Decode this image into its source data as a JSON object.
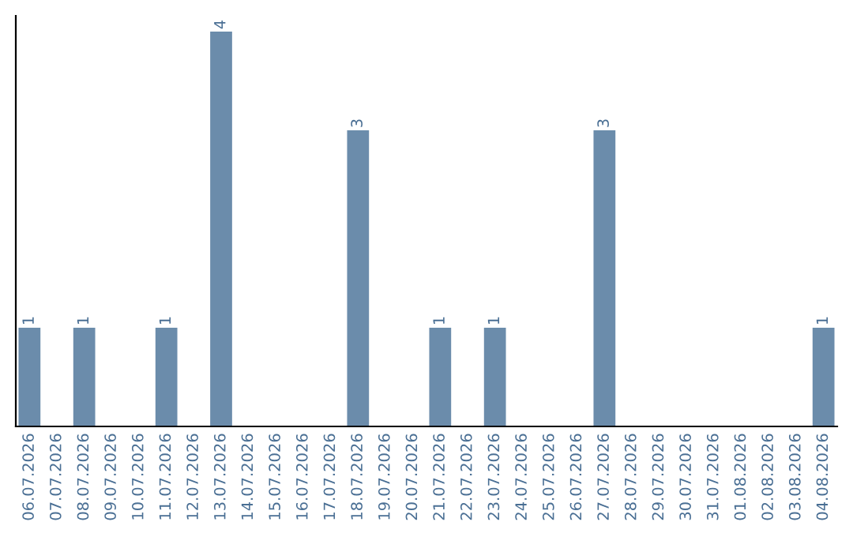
{
  "chart_data": {
    "type": "bar",
    "categories": [
      "06.07.2026",
      "07.07.2026",
      "08.07.2026",
      "09.07.2026",
      "10.07.2026",
      "11.07.2026",
      "12.07.2026",
      "13.07.2026",
      "14.07.2026",
      "15.07.2026",
      "16.07.2026",
      "17.07.2026",
      "18.07.2026",
      "19.07.2026",
      "20.07.2026",
      "21.07.2026",
      "22.07.2026",
      "23.07.2026",
      "24.07.2026",
      "25.07.2026",
      "26.07.2026",
      "27.07.2026",
      "28.07.2026",
      "29.07.2026",
      "30.07.2026",
      "31.07.2026",
      "01.08.2026",
      "02.08.2026",
      "03.08.2026",
      "04.08.2026"
    ],
    "values": [
      1,
      0,
      1,
      0,
      0,
      1,
      0,
      4,
      0,
      0,
      0,
      0,
      3,
      0,
      0,
      1,
      0,
      1,
      0,
      0,
      0,
      3,
      0,
      0,
      0,
      0,
      0,
      0,
      0,
      1
    ],
    "value_labels": [
      "1",
      null,
      "1",
      null,
      null,
      "1",
      null,
      "4",
      null,
      null,
      null,
      null,
      "3",
      null,
      null,
      "1",
      null,
      "1",
      null,
      null,
      null,
      "3",
      null,
      null,
      null,
      null,
      null,
      null,
      null,
      "1"
    ],
    "color": "#6b8cab",
    "tick_labels": "x",
    "grid": false,
    "legend": false
  }
}
